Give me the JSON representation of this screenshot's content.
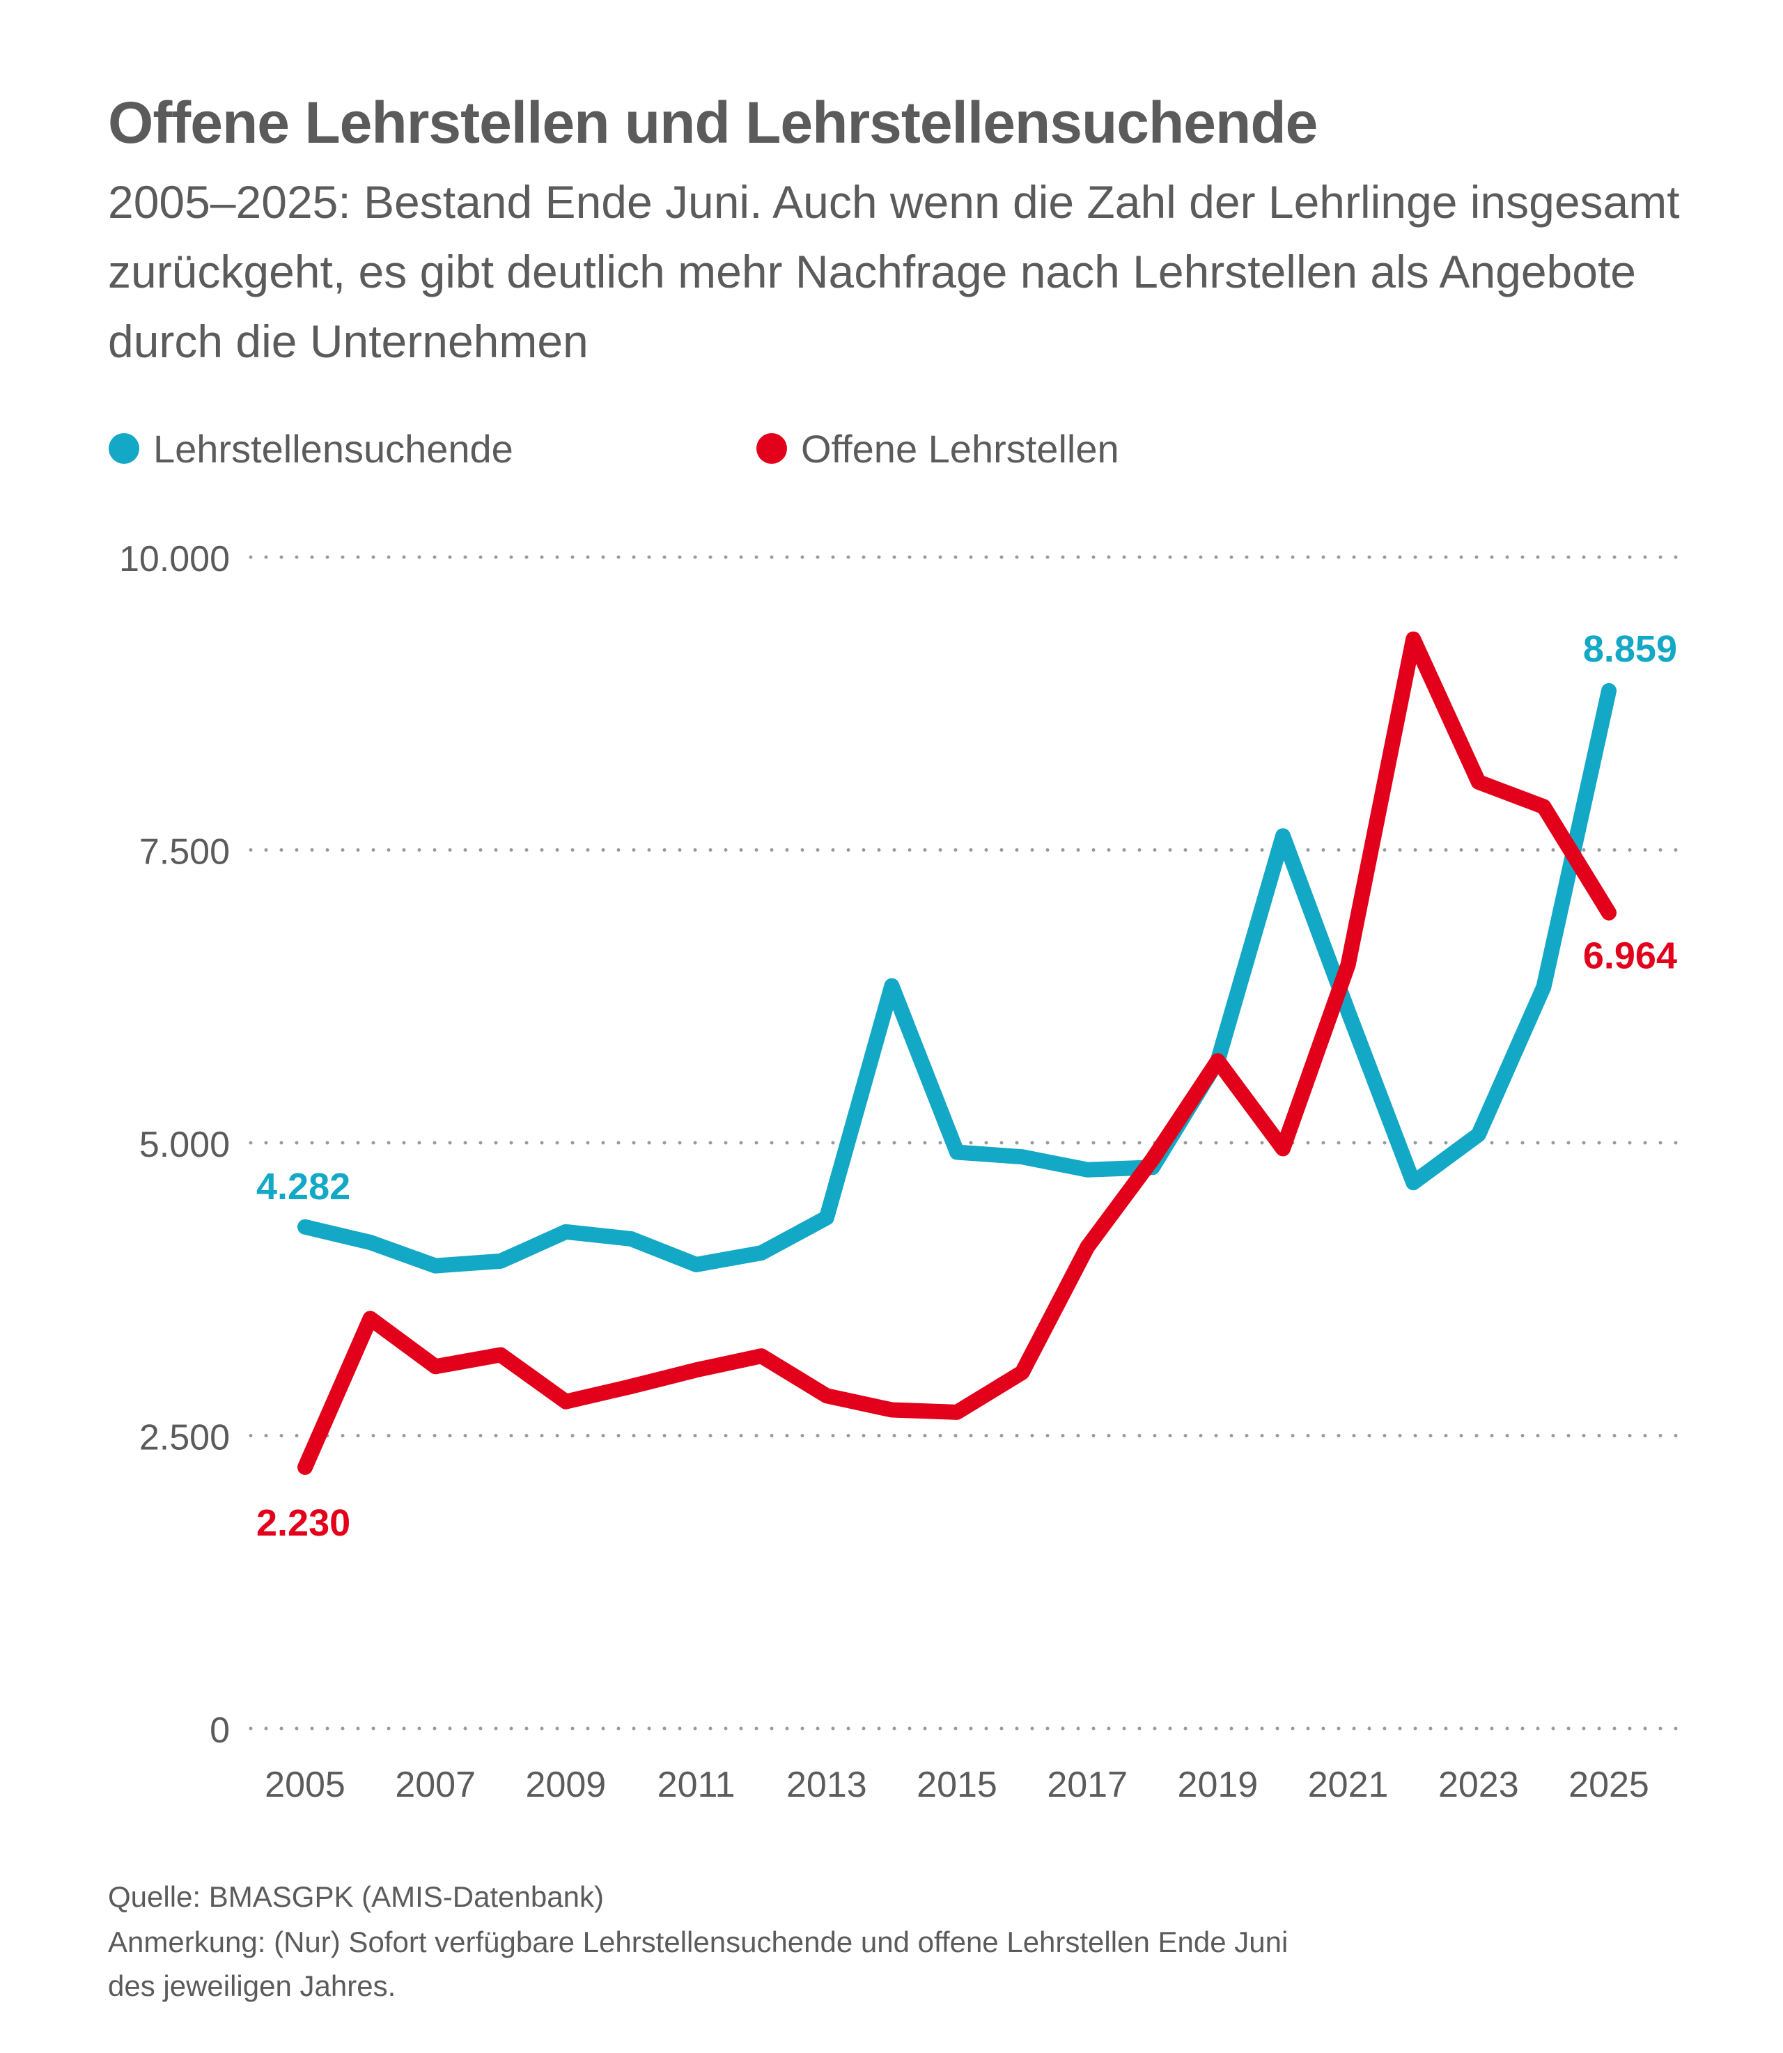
{
  "header": {
    "title": "Offene Lehrstellen und Lehrstellensuchende",
    "subtitle": "2005–2025: Bestand Ende Juni. Auch wenn die Zahl der Lehrlinge insgesamt zurückgeht, es gibt deutlich mehr Nachfrage nach Lehrstellen als Angebote durch die Unternehmen"
  },
  "footer": {
    "source": "Quelle: BMASGPK (AMIS-Datenbank)",
    "note_line1": "Anmerkung: (Nur) Sofort verfügbare Lehrstellensuchende und offene Lehrstellen Ende Juni",
    "note_line2": "des jeweiligen Jahres."
  },
  "chart_data": {
    "type": "line",
    "title": "Offene Lehrstellen und Lehrstellensuchende",
    "xlabel": "",
    "ylabel": "",
    "x": [
      2005,
      2006,
      2007,
      2008,
      2009,
      2010,
      2011,
      2012,
      2013,
      2014,
      2015,
      2016,
      2017,
      2018,
      2019,
      2020,
      2021,
      2022,
      2023,
      2024,
      2025
    ],
    "x_tick_labels": [
      "2005",
      "2007",
      "2009",
      "2011",
      "2013",
      "2015",
      "2017",
      "2019",
      "2021",
      "2023",
      "2025"
    ],
    "x_ticks": [
      2005,
      2007,
      2009,
      2011,
      2013,
      2015,
      2017,
      2019,
      2021,
      2023,
      2025
    ],
    "ylim": [
      0,
      10000
    ],
    "y_ticks": [
      0,
      2500,
      5000,
      7500,
      10000
    ],
    "y_tick_labels": [
      "0",
      "2.500",
      "5.000",
      "7.500",
      "10.000"
    ],
    "grid": "dotted horizontal",
    "legend_position": "top-left",
    "series": [
      {
        "name": "Lehrstellensuchende",
        "color": "#12a8c6",
        "values": [
          4282,
          4150,
          3950,
          3990,
          4240,
          4180,
          3960,
          4060,
          4360,
          6340,
          4920,
          4880,
          4770,
          4790,
          5700,
          7620,
          6120,
          4660,
          5070,
          6330,
          8859
        ],
        "end_labels": {
          "first": "4.282",
          "last": "8.859"
        }
      },
      {
        "name": "Offene Lehrstellen",
        "color": "#e2001a",
        "values": [
          2230,
          3500,
          3090,
          3190,
          2790,
          2920,
          3060,
          3180,
          2840,
          2720,
          2700,
          3040,
          4110,
          4860,
          5700,
          4950,
          6520,
          9300,
          8080,
          7870,
          6964
        ],
        "end_labels": {
          "first": "2.230",
          "last": "6.964"
        }
      }
    ]
  }
}
